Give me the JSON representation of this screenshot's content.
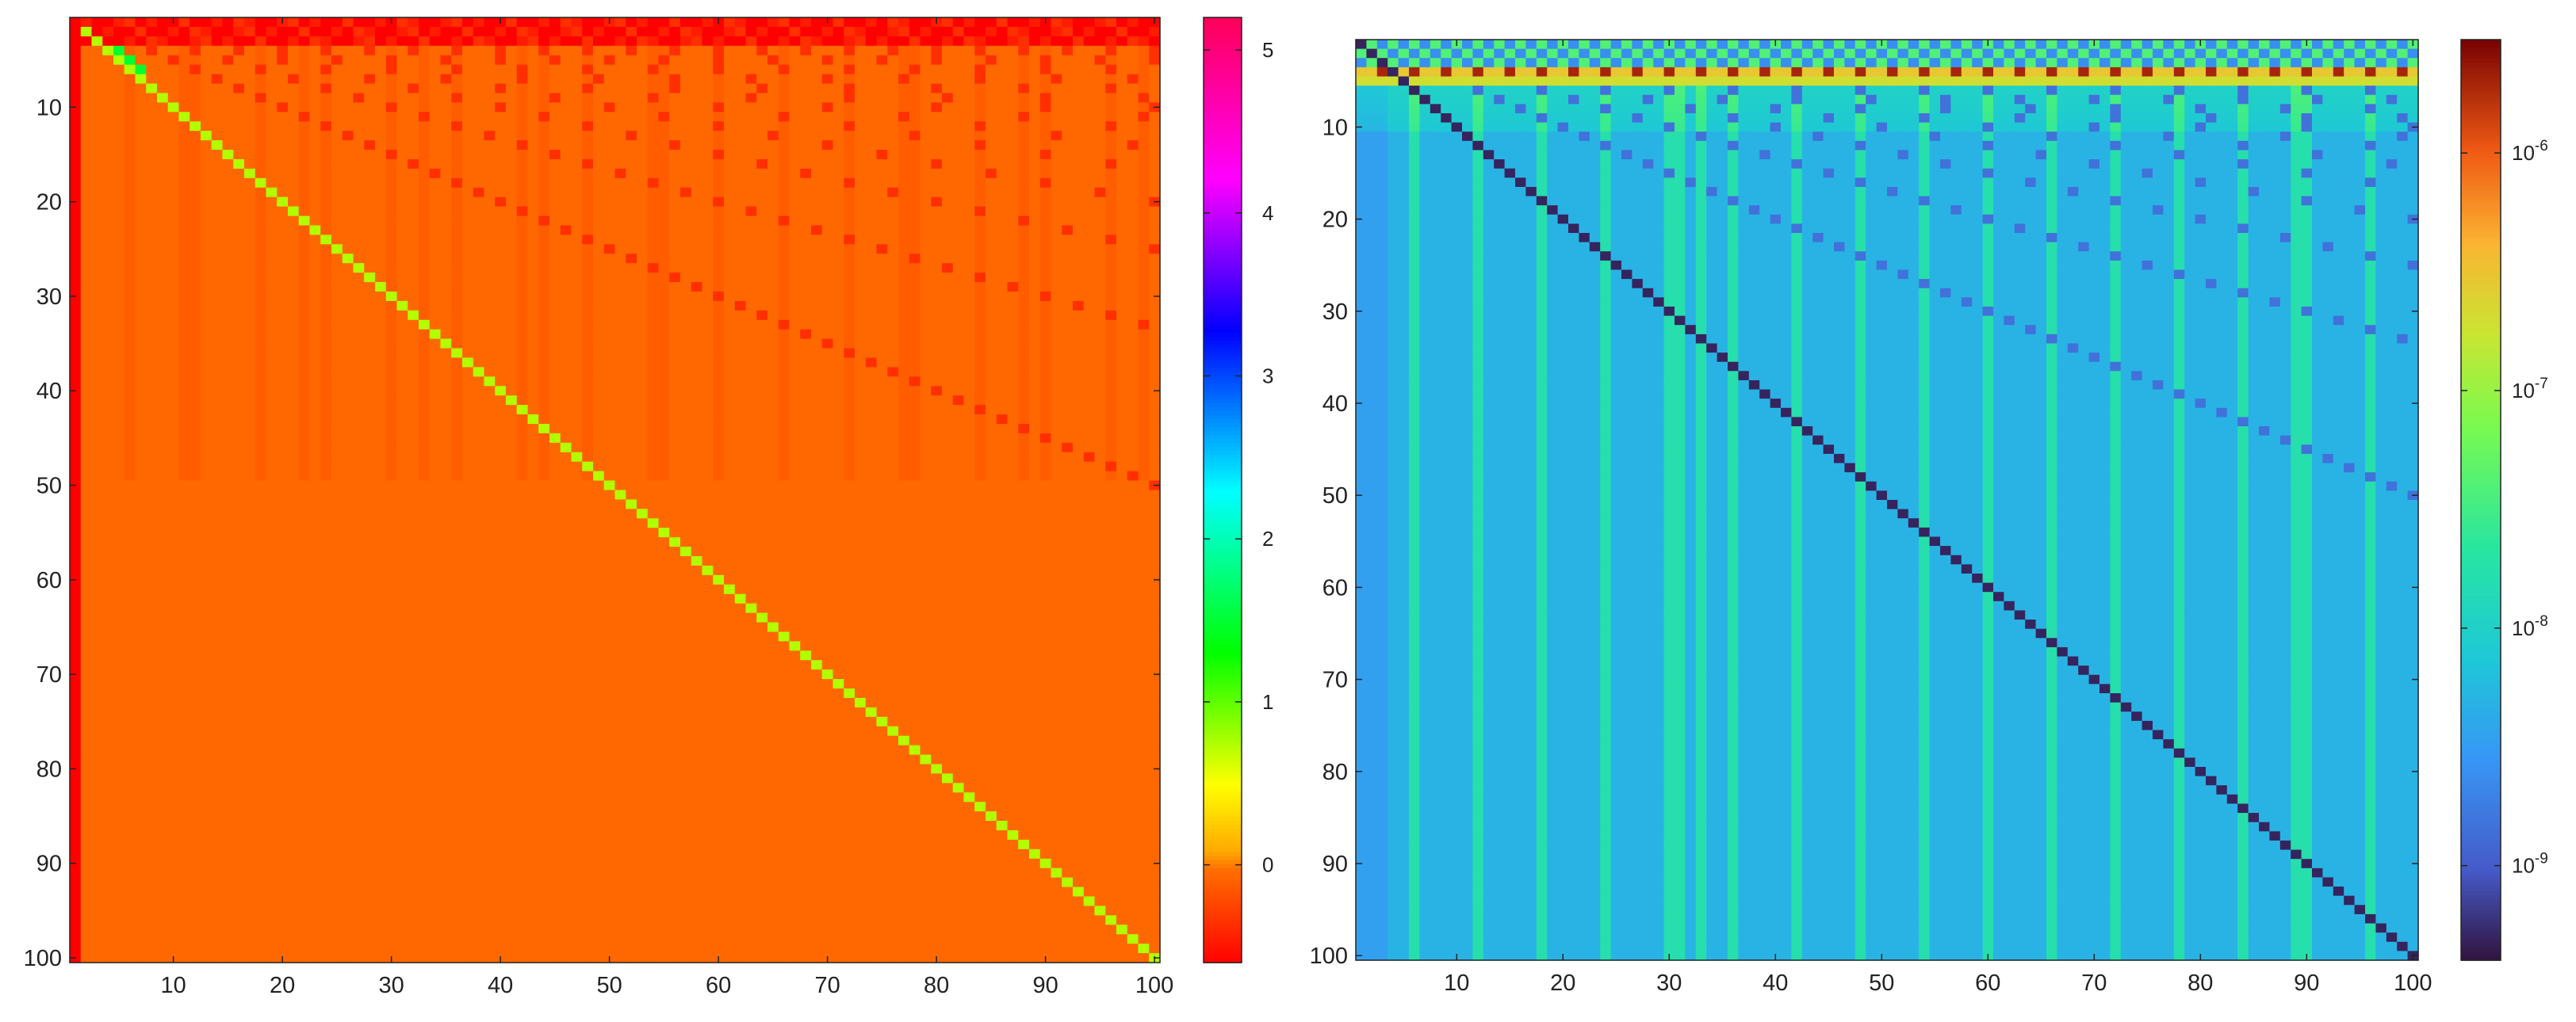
{
  "chart_data": [
    {
      "type": "heatmap",
      "title": "",
      "xlabel": "",
      "ylabel": "",
      "matrix_size": [
        100,
        100
      ],
      "x_ticks": [
        10,
        20,
        30,
        40,
        50,
        60,
        70,
        80,
        90,
        100
      ],
      "y_ticks": [
        10,
        20,
        30,
        40,
        50,
        60,
        70,
        80,
        90,
        100
      ],
      "y_direction": "top-to-bottom",
      "colormap": "hsv-reversed",
      "colorbar": {
        "range": [
          -0.6,
          5.2
        ],
        "scale": "linear",
        "ticks": [
          0,
          1,
          2,
          3,
          4,
          5
        ],
        "tick_labels": [
          "0",
          "1",
          "2",
          "3",
          "4",
          "5"
        ]
      },
      "regions": {
        "background_value": -0.05,
        "first_column_value": -0.6,
        "diagonal_value": 0.75,
        "top_rows_value": -0.6,
        "subdiagonal_marks_value": -0.35
      }
    },
    {
      "type": "heatmap",
      "title": "",
      "xlabel": "",
      "ylabel": "",
      "matrix_size": [
        100,
        100
      ],
      "x_ticks": [
        10,
        20,
        30,
        40,
        50,
        60,
        70,
        80,
        90,
        100
      ],
      "y_ticks": [
        10,
        20,
        30,
        40,
        50,
        60,
        70,
        80,
        90,
        100
      ],
      "y_direction": "top-to-bottom",
      "colormap": "turbo",
      "colorbar": {
        "scale": "log",
        "range": [
          4e-10,
          3e-06
        ],
        "ticks": [
          1e-09,
          1e-08,
          1e-07,
          1e-06
        ],
        "tick_labels": [
          {
            "base": "10",
            "exp": "-9"
          },
          {
            "base": "10",
            "exp": "-8"
          },
          {
            "base": "10",
            "exp": "-7"
          },
          {
            "base": "10",
            "exp": "-6"
          }
        ]
      },
      "regions": {
        "background_value": 5e-09,
        "diagonal_value": 5e-10,
        "band_rows_value": 2e-06,
        "subdiagonal_marks_value": 1.5e-09
      }
    }
  ]
}
